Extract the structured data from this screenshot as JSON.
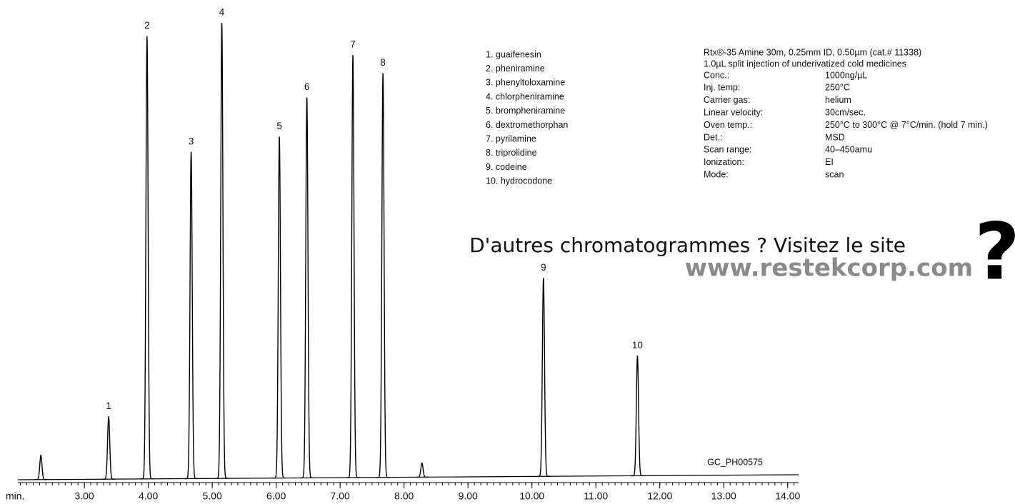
{
  "chart_data": {
    "type": "peaks",
    "x_label": "min.",
    "xlim": [
      1.96,
      14.17
    ],
    "xticks": [
      {
        "value": 3,
        "label": "3.00"
      },
      {
        "value": 4,
        "label": "4.00"
      },
      {
        "value": 5,
        "label": "5.00"
      },
      {
        "value": 6,
        "label": "6.00"
      },
      {
        "value": 7,
        "label": "7.00"
      },
      {
        "value": 8,
        "label": "8.00"
      },
      {
        "value": 9,
        "label": "9.00"
      },
      {
        "value": 10,
        "label": "10.00"
      },
      {
        "value": 11,
        "label": "11.00"
      },
      {
        "value": 12,
        "label": "12.00"
      },
      {
        "value": 13,
        "label": "13.00"
      },
      {
        "value": 14,
        "label": "14.00"
      }
    ],
    "xminor": 0.1,
    "ylim": [
      0,
      100
    ],
    "color": "#000000",
    "x": [
      2.32,
      3.38,
      3.98,
      4.67,
      5.15,
      6.05,
      6.48,
      7.2,
      7.67,
      8.28,
      10.18,
      11.65
    ],
    "values": [
      5.3,
      13.7,
      96.6,
      71.3,
      99.4,
      74.5,
      83.0,
      92.2,
      88.2,
      3.1,
      43.3,
      26.2
    ],
    "peak_labels": [
      null,
      "1",
      "2",
      "3",
      "4",
      "5",
      "6",
      "7",
      "8",
      null,
      "9",
      "10"
    ],
    "note": "GC_PH00575"
  },
  "compounds": [
    "1. guaifenesin",
    "2. pheniramine",
    "3. phenyltoloxamine",
    "4. chlorpheniramine",
    "5. brompheniramine",
    "6. dextromethorphan",
    "7. pyrilamine",
    "8. triprolidine",
    "9. codeine",
    "10. hydrocodone"
  ],
  "conditions": {
    "header": [
      "Rtx®-35 Amine 30m, 0.25mm ID, 0.50µm (cat.# 11338)",
      "1.0µL split injection of underivatized cold medicines"
    ],
    "rows": [
      [
        "Conc.:",
        "1000ng/µL"
      ],
      [
        "Inj. temp:",
        "250°C"
      ],
      [
        "Carrier gas:",
        "helium"
      ],
      [
        "Linear velocity:",
        "30cm/sec."
      ],
      [
        "Oven temp.:",
        "250°C to 300°C @ 7°C/min. (hold 7 min.)"
      ],
      [
        "Det.:",
        "MSD"
      ],
      [
        "Scan range:",
        "40–450amu"
      ],
      [
        "Ionization:",
        "EI"
      ],
      [
        "Mode:",
        "scan"
      ]
    ]
  },
  "promo": {
    "line": "D'autres chromatogrammes ? Visitez le site",
    "url": "www.restekcorp.com",
    "icon": "?"
  }
}
